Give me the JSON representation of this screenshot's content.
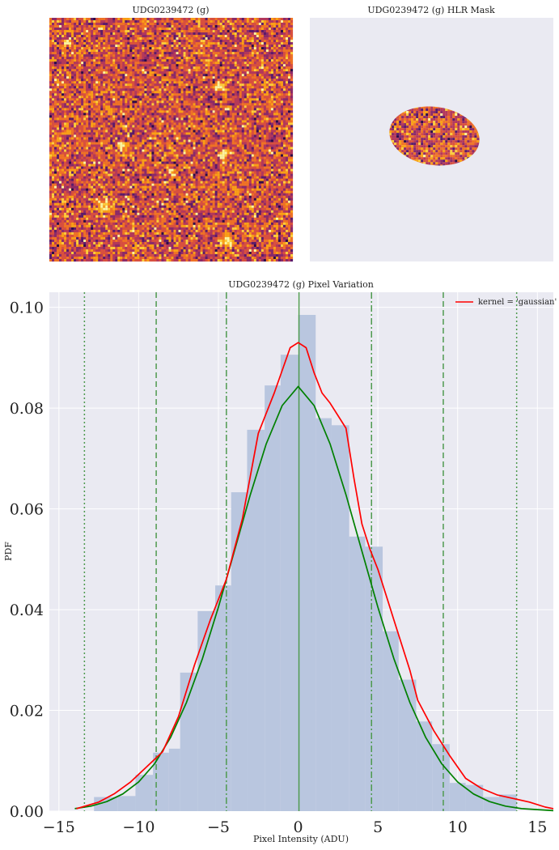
{
  "panels": {
    "image_title": "UDG0239472 (g)",
    "mask_title": "UDG0239472 (g) HLR Mask"
  },
  "chart_data": {
    "type": "bar",
    "title": "UDG0239472 (g) Pixel Variation",
    "xlabel": "Pixel Intensity (ADU)",
    "ylabel": "PDF",
    "xlim": [
      -15.6,
      16.0
    ],
    "ylim": [
      0,
      0.103
    ],
    "xticks": [
      -15,
      -10,
      -5,
      0,
      5,
      10,
      15
    ],
    "xtick_labels": [
      "−15",
      "−10",
      "−5",
      "0",
      "5",
      "10",
      "15"
    ],
    "yticks": [
      0.0,
      0.02,
      0.04,
      0.06,
      0.08,
      0.1
    ],
    "ytick_labels": [
      "0.00",
      "0.02",
      "0.04",
      "0.06",
      "0.08",
      "0.10"
    ],
    "grid": true,
    "legend_position": "top-right",
    "legend": [
      "kernel = 'gaussian'"
    ],
    "histogram": {
      "color": "#b9c6df",
      "bins": [
        {
          "x0": -12.8,
          "x1": -11.3,
          "y": 0.0028
        },
        {
          "x0": -11.3,
          "x1": -10.2,
          "y": 0.003
        },
        {
          "x0": -10.2,
          "x1": -9.1,
          "y": 0.0072
        },
        {
          "x0": -9.1,
          "x1": -8.1,
          "y": 0.0116
        },
        {
          "x0": -8.1,
          "x1": -7.4,
          "y": 0.0124
        },
        {
          "x0": -7.4,
          "x1": -6.3,
          "y": 0.0275
        },
        {
          "x0": -6.3,
          "x1": -5.2,
          "y": 0.0397
        },
        {
          "x0": -5.2,
          "x1": -4.2,
          "y": 0.0448
        },
        {
          "x0": -4.2,
          "x1": -3.2,
          "y": 0.0633
        },
        {
          "x0": -3.2,
          "x1": -2.1,
          "y": 0.0757
        },
        {
          "x0": -2.1,
          "x1": -1.1,
          "y": 0.0845
        },
        {
          "x0": -1.1,
          "x1": 0.0,
          "y": 0.0906
        },
        {
          "x0": 0.0,
          "x1": 1.1,
          "y": 0.0985
        },
        {
          "x0": 1.1,
          "x1": 2.1,
          "y": 0.078
        },
        {
          "x0": 2.1,
          "x1": 3.2,
          "y": 0.0766
        },
        {
          "x0": 3.2,
          "x1": 4.2,
          "y": 0.0545
        },
        {
          "x0": 4.2,
          "x1": 5.3,
          "y": 0.0525
        },
        {
          "x0": 5.3,
          "x1": 6.3,
          "y": 0.0357
        },
        {
          "x0": 6.3,
          "x1": 7.4,
          "y": 0.0261
        },
        {
          "x0": 7.4,
          "x1": 8.4,
          "y": 0.0178
        },
        {
          "x0": 8.4,
          "x1": 9.5,
          "y": 0.0133
        },
        {
          "x0": 9.5,
          "x1": 10.5,
          "y": 0.0056
        },
        {
          "x0": 10.5,
          "x1": 11.6,
          "y": 0.0052
        },
        {
          "x0": 11.6,
          "x1": 12.6,
          "y": 0.0028
        },
        {
          "x0": 12.6,
          "x1": 13.7,
          "y": 0.0033
        }
      ]
    },
    "series": [
      {
        "name": "kernel = 'gaussian'",
        "color": "#ff0000",
        "x": [
          -13.9,
          -12.5,
          -11.5,
          -10.5,
          -9.5,
          -8.5,
          -7.5,
          -6.5,
          -5.5,
          -4.5,
          -3.5,
          -2.5,
          -1.5,
          -0.5,
          0.0,
          0.5,
          1.0,
          1.5,
          2.0,
          3.0,
          3.5,
          4.0,
          4.5,
          5.0,
          5.5,
          6.0,
          6.5,
          7.0,
          7.5,
          8.5,
          9.5,
          10.5,
          11.5,
          12.5,
          13.5,
          14.5,
          15.5,
          16.0
        ],
        "y": [
          0.0005,
          0.0018,
          0.0035,
          0.0058,
          0.0088,
          0.0118,
          0.0188,
          0.029,
          0.038,
          0.046,
          0.058,
          0.075,
          0.083,
          0.092,
          0.093,
          0.092,
          0.087,
          0.083,
          0.081,
          0.076,
          0.066,
          0.057,
          0.052,
          0.048,
          0.043,
          0.038,
          0.033,
          0.028,
          0.022,
          0.016,
          0.011,
          0.0065,
          0.0045,
          0.0032,
          0.0025,
          0.0018,
          0.0008,
          0.0005
        ]
      },
      {
        "name": "",
        "color": "#008000",
        "x": [
          -14,
          -13,
          -12,
          -11,
          -10,
          -9,
          -8,
          -7,
          -6,
          -5,
          -4,
          -3,
          -2,
          -1,
          0,
          1,
          2,
          3,
          4,
          5,
          6,
          7,
          8,
          9,
          10,
          11,
          12,
          13,
          14,
          15,
          16
        ],
        "y": [
          0.0005,
          0.001,
          0.0019,
          0.0034,
          0.0058,
          0.0094,
          0.0146,
          0.0216,
          0.0303,
          0.0405,
          0.0516,
          0.0628,
          0.0729,
          0.0805,
          0.0843,
          0.0805,
          0.0729,
          0.0628,
          0.0516,
          0.0405,
          0.0303,
          0.0216,
          0.0146,
          0.0094,
          0.0058,
          0.0034,
          0.0019,
          0.001,
          0.0005,
          0.0003,
          0.0001
        ]
      }
    ],
    "reference_lines": [
      {
        "x": 0.05,
        "style": "solid",
        "color": "#4f9a4f"
      },
      {
        "x": -4.5,
        "style": "dashdot",
        "color": "#4f9a4f"
      },
      {
        "x": 4.6,
        "style": "dashdot",
        "color": "#4f9a4f"
      },
      {
        "x": -8.9,
        "style": "dashed",
        "color": "#4f9a4f"
      },
      {
        "x": 9.1,
        "style": "dashed",
        "color": "#4f9a4f"
      },
      {
        "x": -13.4,
        "style": "dotted",
        "color": "#4f9a4f"
      },
      {
        "x": 13.7,
        "style": "dotted",
        "color": "#4f9a4f"
      }
    ]
  }
}
